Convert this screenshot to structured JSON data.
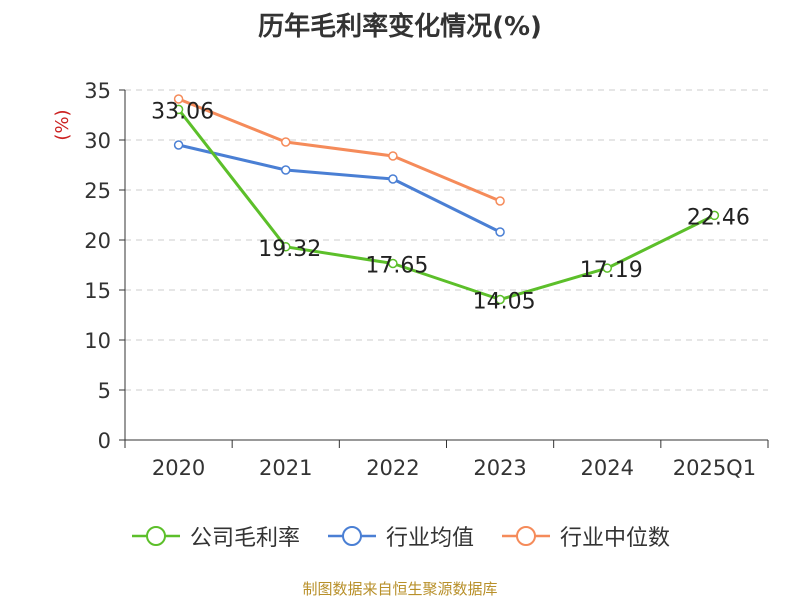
{
  "chart_data": {
    "type": "line",
    "title": "历年毛利率变化情况(%)",
    "ylabel": "(%)",
    "categories": [
      "2020",
      "2021",
      "2022",
      "2023",
      "2024",
      "2025Q1"
    ],
    "ylim": [
      0,
      35
    ],
    "yticks": [
      0,
      5,
      10,
      15,
      20,
      25,
      30,
      35
    ],
    "grid": true,
    "legend_position": "bottom",
    "series": [
      {
        "name": "公司毛利率",
        "color": "#5cbf2a",
        "values": [
          33.06,
          19.32,
          17.65,
          14.05,
          17.19,
          22.46
        ],
        "labels": [
          "33.06",
          "19.32",
          "17.65",
          "14.05",
          "17.19",
          "22.46"
        ]
      },
      {
        "name": "行业均值",
        "color": "#4a7fd4",
        "values": [
          29.5,
          27.0,
          26.1,
          20.8,
          null,
          null
        ]
      },
      {
        "name": "行业中位数",
        "color": "#f58b5a",
        "values": [
          34.1,
          29.8,
          28.4,
          23.9,
          null,
          null
        ]
      }
    ]
  },
  "footer": {
    "source": "制图数据来自恒生聚源数据库"
  }
}
